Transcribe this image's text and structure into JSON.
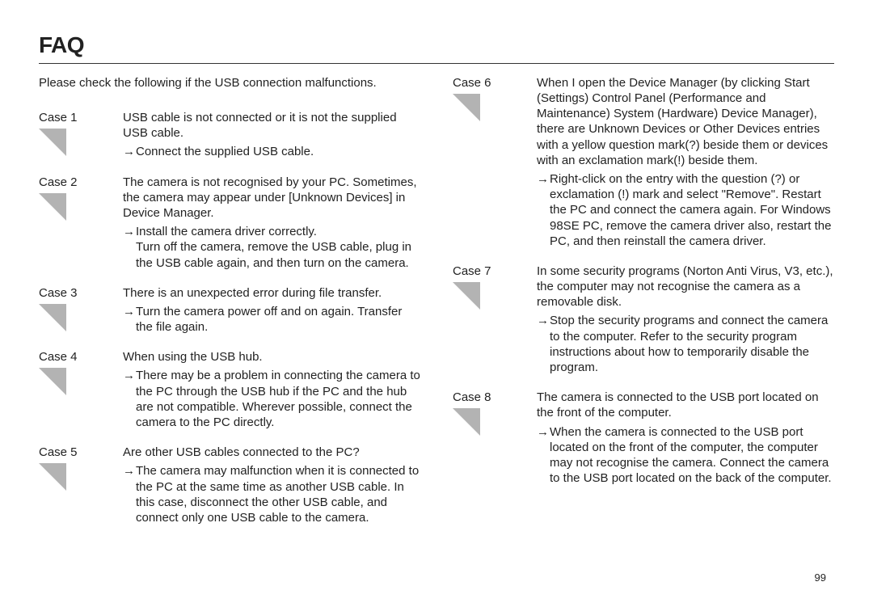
{
  "title": "FAQ",
  "intro": "Please check the following if the USB connection malfunctions.",
  "arrow_glyph": "→",
  "page_number": "99",
  "triangle": {
    "width": 34,
    "height": 34,
    "fill": "#b3b3b3"
  },
  "left_cases": [
    {
      "label": "Case 1",
      "problem": "USB cable is not connected or it is not the supplied USB cable.",
      "solution": "Connect the supplied USB cable."
    },
    {
      "label": "Case 2",
      "problem": "The camera is not recognised by your PC. Sometimes, the camera may appear under [Unknown Devices] in Device Manager.",
      "solution": "Install the camera driver correctly.\nTurn off the camera, remove the USB cable, plug in the USB cable again, and then turn on the camera."
    },
    {
      "label": "Case 3",
      "problem": "There is an unexpected error during file transfer.",
      "solution": "Turn the camera power off and on again. Transfer the file again."
    },
    {
      "label": "Case 4",
      "problem": "When using the USB hub.",
      "solution": "There may be a problem in connecting the camera to the PC through the USB hub if the PC and the hub are not compatible. Wherever possible, connect the camera to the PC directly."
    },
    {
      "label": "Case 5",
      "problem": "Are other USB cables connected to the PC?",
      "solution": "The camera may malfunction when it is connected to the PC at the same time as another USB cable. In this case, disconnect the other USB cable, and connect only one USB cable to the camera."
    }
  ],
  "right_cases": [
    {
      "label": "Case 6",
      "problem": "When I open the Device Manager (by clicking Start  (Settings)  Control Panel  (Performance and Maintenance)  System  (Hardware)  Device Manager), there are Unknown Devices or Other Devices entries with a yellow question mark(?) beside them or devices with an exclamation mark(!) beside them.",
      "solution": "Right-click on the entry with the question (?) or exclamation (!) mark and select \"Remove\". Restart the PC and connect the camera again. For Windows 98SE PC, remove the camera driver also, restart the PC, and then reinstall the camera driver."
    },
    {
      "label": "Case 7",
      "problem": "In some security programs (Norton Anti Virus, V3, etc.), the computer may not recognise the camera as a removable disk.",
      "solution": "Stop the security programs and connect the camera to the computer. Refer to the security program instructions about how to temporarily disable the program."
    },
    {
      "label": "Case 8",
      "problem": "The camera is connected to the USB port located on the front of the computer.",
      "solution": "When the camera is connected to the USB port located on the front of the computer, the computer may not   recognise the camera. Connect the camera to the USB port located on the back of  the computer."
    }
  ]
}
